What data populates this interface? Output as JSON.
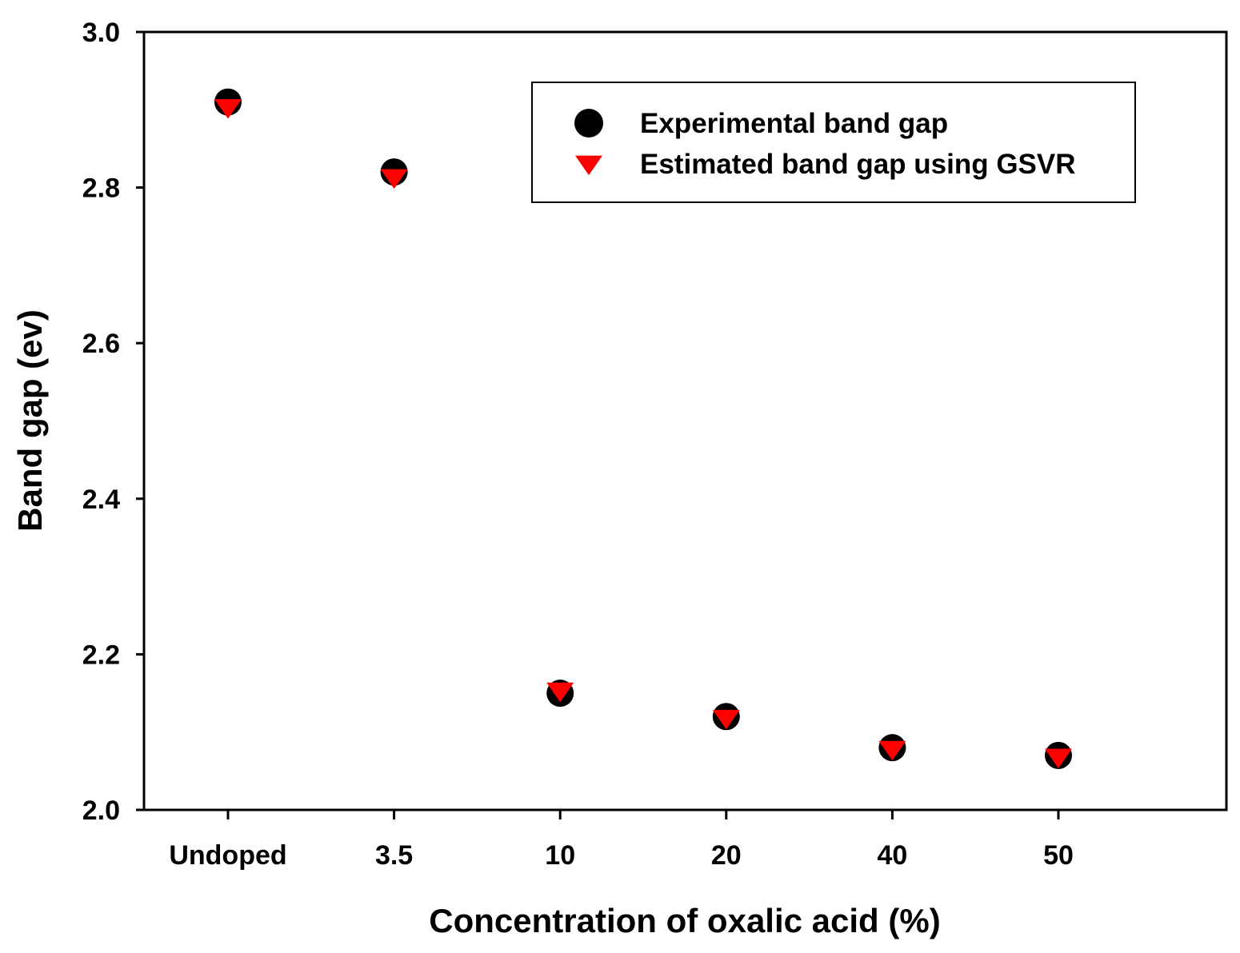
{
  "chart_data": {
    "type": "scatter",
    "title": "",
    "xlabel": "Concentration of oxalic acid (%)",
    "ylabel": "Band gap (ev)",
    "categories": [
      "Undoped",
      "3.5",
      "10",
      "20",
      "40",
      "50"
    ],
    "ylim": [
      2.0,
      3.0
    ],
    "yticks": [
      "2.0",
      "2.2",
      "2.4",
      "2.6",
      "2.8",
      "3.0"
    ],
    "grid": false,
    "legend_position": "top-right",
    "series": [
      {
        "name": "Experimental band gap",
        "marker": "circle",
        "color": "#000000",
        "values": [
          2.91,
          2.82,
          2.15,
          2.12,
          2.08,
          2.07
        ]
      },
      {
        "name": "Estimated band gap using GSVR",
        "marker": "triangle-down",
        "color": "#ff0000",
        "values": [
          2.905,
          2.815,
          2.155,
          2.12,
          2.08,
          2.07
        ]
      }
    ]
  }
}
